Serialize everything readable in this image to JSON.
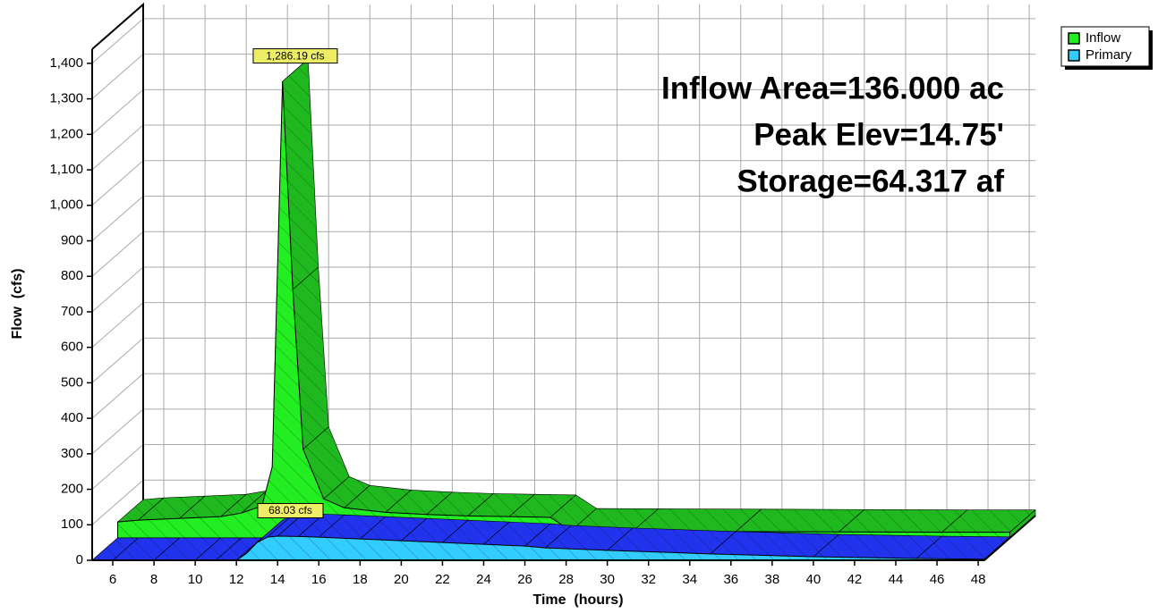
{
  "chart_data": {
    "type": "area3d",
    "x_label": "Time  (hours)",
    "y_label": "Flow  (cfs)",
    "info": [
      "Inflow Area=136.000 ac",
      "Peak Elev=14.75'",
      "Storage=64.317 af"
    ],
    "x": [
      5,
      6,
      8,
      10,
      11,
      12,
      12.5,
      13,
      13.5,
      14,
      15,
      16,
      18,
      20,
      22,
      24,
      26,
      27,
      30,
      35,
      40,
      45,
      48.3
    ],
    "series": [
      {
        "name": "Inflow",
        "color": "#22ee22",
        "top_color": "#1fb81f",
        "values": [
          45,
          50,
          55,
          60,
          70,
          90,
          200,
          1286.19,
          700,
          250,
          110,
          85,
          72,
          66,
          62,
          60,
          58,
          20,
          19,
          18,
          17,
          16,
          16
        ],
        "value_labels": [
          null,
          null,
          null,
          null,
          null,
          null,
          null,
          "1,286.19 cfs",
          null,
          null,
          null,
          null,
          null,
          null,
          null,
          null,
          null,
          null,
          null,
          null,
          null,
          null,
          null
        ]
      },
      {
        "name": "Primary",
        "color": "#33ccff",
        "top_color": "#2233ee",
        "values": [
          0,
          0,
          0,
          0,
          0,
          0,
          20,
          50,
          65,
          68.03,
          67,
          65,
          60,
          55,
          50,
          45,
          40,
          35,
          28,
          18,
          10,
          5,
          3
        ],
        "value_labels": [
          null,
          null,
          null,
          null,
          null,
          null,
          null,
          null,
          null,
          "68.03 cfs",
          null,
          null,
          null,
          null,
          null,
          null,
          null,
          null,
          null,
          null,
          null,
          null,
          null
        ]
      }
    ],
    "xlim": [
      5,
      48.3
    ],
    "xticks": [
      6,
      8,
      10,
      12,
      14,
      16,
      18,
      20,
      22,
      24,
      26,
      28,
      30,
      32,
      34,
      36,
      38,
      40,
      42,
      44,
      46,
      48
    ],
    "ylim": [
      0,
      1440
    ],
    "yticks": [
      0,
      100,
      200,
      300,
      400,
      500,
      600,
      700,
      800,
      900,
      {
        "value": 1000,
        "label": "1,000"
      },
      {
        "value": 1100,
        "label": "1,100"
      },
      {
        "value": 1200,
        "label": "1,200"
      },
      {
        "value": 1300,
        "label": "1,300"
      },
      {
        "value": 1400,
        "label": "1,400"
      }
    ],
    "grid": true,
    "legend": "top-right"
  }
}
